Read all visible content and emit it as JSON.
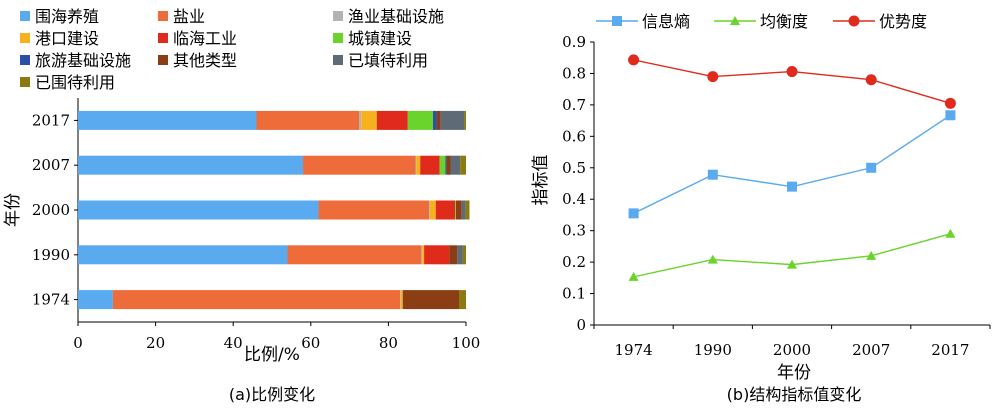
{
  "chart_data": [
    {
      "type": "bar",
      "orientation": "horizontal",
      "stacked": true,
      "xlabel": "比例/%",
      "ylabel": "年份",
      "caption": "(a)比例变化",
      "xlim": [
        0,
        100
      ],
      "xticks": [
        "0",
        "20",
        "40",
        "60",
        "80",
        "100"
      ],
      "categories": [
        "2017",
        "2007",
        "2000",
        "1990",
        "1974"
      ],
      "legend_position": "top",
      "series": [
        {
          "name": "围海养殖",
          "color": "#5aaaf0",
          "values": [
            46,
            58,
            62,
            54,
            9
          ]
        },
        {
          "name": "盐业",
          "color": "#ee6b3a",
          "values": [
            26.5,
            29,
            28.5,
            34.5,
            74
          ]
        },
        {
          "name": "渔业基础设施",
          "color": "#b3b3b3",
          "values": [
            0.5,
            0.2,
            0.2,
            0.2,
            0.2
          ]
        },
        {
          "name": "港口建设",
          "color": "#f5b21d",
          "values": [
            4,
            1,
            1.5,
            0.5,
            0.5
          ]
        },
        {
          "name": "临海工业",
          "color": "#e02a1c",
          "values": [
            8,
            5,
            5,
            6.5,
            0
          ]
        },
        {
          "name": "城镇建设",
          "color": "#6ad42c",
          "values": [
            6.5,
            1.5,
            0.2,
            0,
            0
          ]
        },
        {
          "name": "旅游基础设施",
          "color": "#2a4fa8",
          "values": [
            1,
            0.3,
            0,
            0,
            0
          ]
        },
        {
          "name": "其他类型",
          "color": "#8b3d14",
          "values": [
            1,
            1,
            1.5,
            2,
            14.5
          ]
        },
        {
          "name": "已填待利用",
          "color": "#5e6b76",
          "values": [
            6,
            2.5,
            1,
            1.5,
            0
          ]
        },
        {
          "name": "已围待利用",
          "color": "#8b7a10",
          "values": [
            0.5,
            1.5,
            1,
            0.8,
            1.8
          ]
        }
      ]
    },
    {
      "type": "line",
      "xlabel": "年份",
      "ylabel": "指标值",
      "caption": "(b)结构指标值变化",
      "ylim": [
        0,
        0.9
      ],
      "yticks": [
        "0",
        "0.1",
        "0.2",
        "0.3",
        "0.4",
        "0.5",
        "0.6",
        "0.7",
        "0.8",
        "0.9"
      ],
      "categories": [
        "1974",
        "1990",
        "2000",
        "2007",
        "2017"
      ],
      "legend_position": "top",
      "series": [
        {
          "name": "信息熵",
          "color": "#5aaaf0",
          "marker": "square",
          "values": [
            0.355,
            0.478,
            0.44,
            0.5,
            0.667
          ]
        },
        {
          "name": "均衡度",
          "color": "#6ad42c",
          "marker": "triangle",
          "values": [
            0.153,
            0.208,
            0.192,
            0.22,
            0.29
          ]
        },
        {
          "name": "优势度",
          "color": "#e02a1c",
          "marker": "circle",
          "values": [
            0.843,
            0.79,
            0.806,
            0.78,
            0.705
          ]
        }
      ]
    }
  ]
}
